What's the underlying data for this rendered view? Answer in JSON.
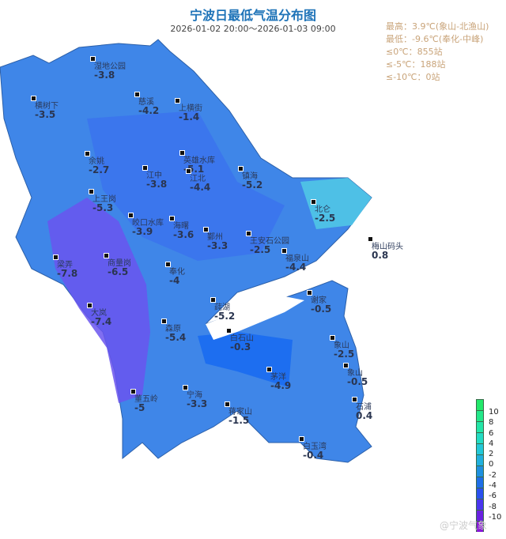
{
  "header": {
    "title": "宁波日最低气温分布图",
    "period": "2026-01-02  20:00～2026-01-03 09:00"
  },
  "stats": [
    "最高：3.9℃(象山-北渔山)",
    "最低：-9.6℃(奉化-中峰)",
    "≤0℃：855站",
    "≤-5℃：188站",
    "≤-10℃：0站"
  ],
  "stations": [
    {
      "name": "湿地公园",
      "value": "-3.8"
    },
    {
      "name": "横树下",
      "value": "-3.5"
    },
    {
      "name": "慈溪",
      "value": "-4.2"
    },
    {
      "name": "上横街",
      "value": "-1.4"
    },
    {
      "name": "余姚",
      "value": "-2.7"
    },
    {
      "name": "江中",
      "value": "-3.8"
    },
    {
      "name": "英雄水库",
      "value": "-5.1"
    },
    {
      "name": "江北",
      "value": "-4.4"
    },
    {
      "name": "镇海",
      "value": "-5.2"
    },
    {
      "name": "上王岗",
      "value": "-5.3"
    },
    {
      "name": "北仑",
      "value": "-2.5"
    },
    {
      "name": "皎口水库",
      "value": "-3.9"
    },
    {
      "name": "海曙",
      "value": "-3.6"
    },
    {
      "name": "鄞州",
      "value": "-3.3"
    },
    {
      "name": "王安石公园",
      "value": "-2.5"
    },
    {
      "name": "福泉山",
      "value": "-4.4"
    },
    {
      "name": "梅山码头",
      "value": "0.8"
    },
    {
      "name": "梁弄",
      "value": "-7.8"
    },
    {
      "name": "商量岗",
      "value": "-6.5"
    },
    {
      "name": "奉化",
      "value": "-4"
    },
    {
      "name": "大岚",
      "value": "-7.4"
    },
    {
      "name": "莼湖",
      "value": "-5.2"
    },
    {
      "name": "森原",
      "value": "-5.4"
    },
    {
      "name": "谢家",
      "value": "-0.5"
    },
    {
      "name": "白石山",
      "value": "-0.3"
    },
    {
      "name": "象山",
      "value": "-2.5"
    },
    {
      "name": "茅洋",
      "value": "-4.9"
    },
    {
      "name": "象山",
      "value": "-0.5"
    },
    {
      "name": "石浦",
      "value": "0.4"
    },
    {
      "name": "董五岭",
      "value": "-5"
    },
    {
      "name": "宁海",
      "value": "-3.3"
    },
    {
      "name": "蒋家山",
      "value": "-1.5"
    },
    {
      "name": "白玉湾",
      "value": "-0.4"
    }
  ],
  "legend": {
    "ticks": [
      "10",
      "8",
      "6",
      "4",
      "2",
      "0",
      "-2",
      "-4",
      "-6",
      "-8",
      "-10"
    ],
    "colors": [
      "#22e86a",
      "#22e88a",
      "#22e6a8",
      "#22dcc4",
      "#22c8d8",
      "#20b0de",
      "#1e90e0",
      "#1e6ee8",
      "#2a50ee",
      "#4a36ee",
      "#6a22e0",
      "#8a18d8"
    ]
  },
  "watermark": "@宁波气象"
}
